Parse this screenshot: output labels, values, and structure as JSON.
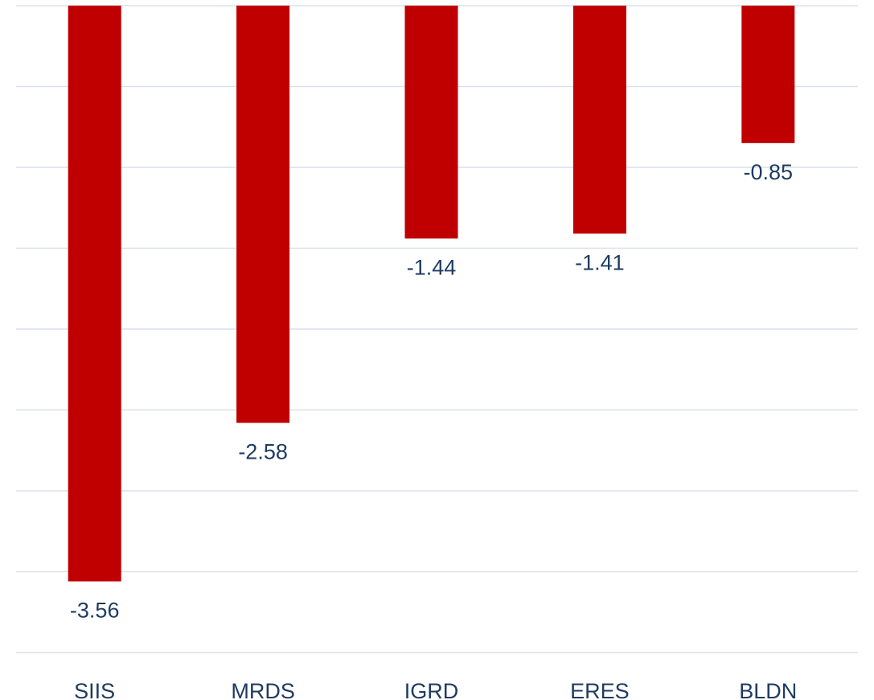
{
  "chart_data": {
    "type": "bar",
    "title": "",
    "xlabel": "",
    "ylabel": "",
    "categories": [
      "SIIS",
      "MRDS",
      "IGRD",
      "ERES",
      "BLDN"
    ],
    "values": [
      -3.56,
      -2.58,
      -1.44,
      -1.41,
      -0.85
    ],
    "data_labels": [
      "-3.56",
      "-2.58",
      "-1.44",
      "-1.41",
      "-0.85"
    ],
    "ylim": [
      -4.0,
      0.0
    ],
    "grid": true,
    "legend": "none",
    "colors": {
      "bar": "#c00000",
      "label": "#1f3b63",
      "grid": "#d9e1ec"
    }
  }
}
